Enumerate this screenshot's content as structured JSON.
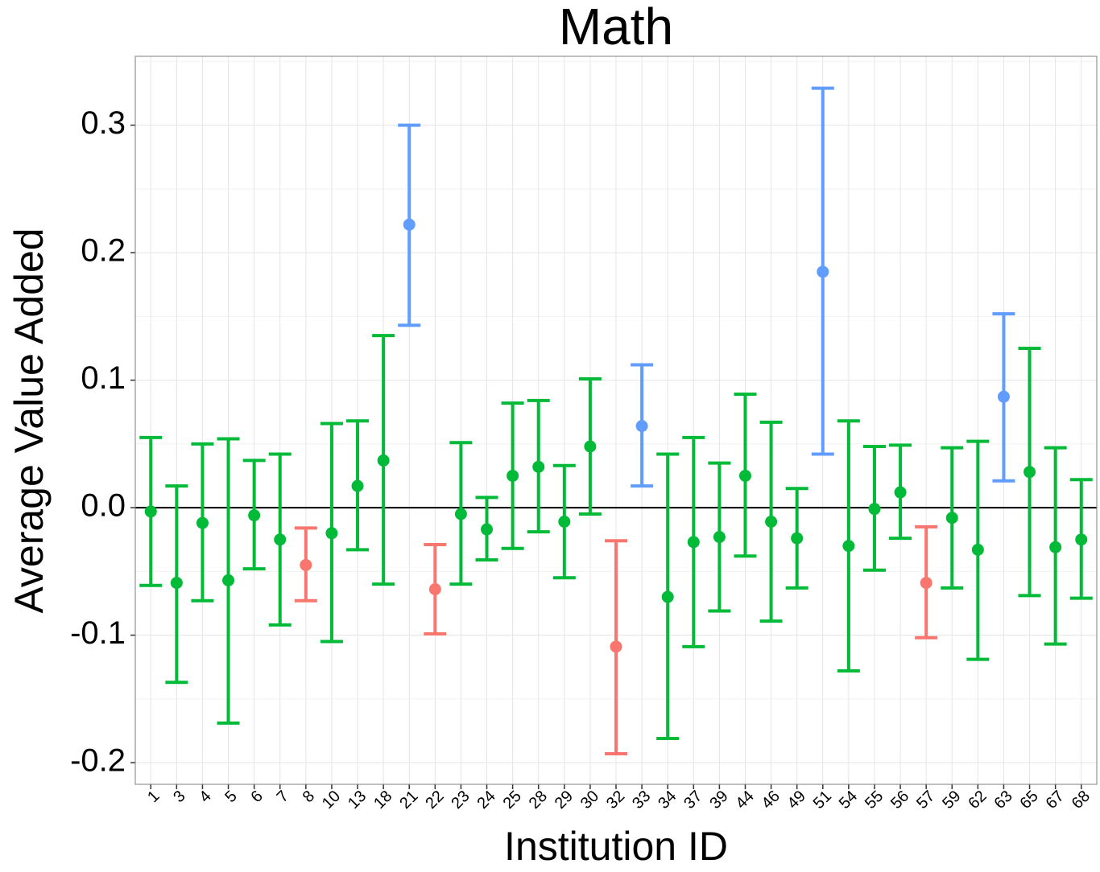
{
  "chart_data": {
    "type": "errorbar",
    "title": "Math",
    "x_label": "Institution ID",
    "y_label": "Average Value Added",
    "categories": [
      "1",
      "3",
      "4",
      "5",
      "6",
      "7",
      "8",
      "10",
      "13",
      "18",
      "21",
      "22",
      "23",
      "24",
      "25",
      "28",
      "29",
      "30",
      "32",
      "33",
      "34",
      "37",
      "39",
      "44",
      "46",
      "49",
      "51",
      "54",
      "55",
      "56",
      "57",
      "59",
      "62",
      "63",
      "65",
      "67",
      "68"
    ],
    "values": [
      -0.003,
      -0.059,
      -0.012,
      -0.057,
      -0.006,
      -0.025,
      -0.045,
      -0.02,
      0.017,
      0.037,
      0.222,
      -0.064,
      -0.005,
      -0.017,
      0.025,
      0.032,
      -0.011,
      0.048,
      -0.109,
      0.064,
      -0.07,
      -0.027,
      -0.023,
      0.025,
      -0.011,
      -0.024,
      0.185,
      -0.03,
      -0.001,
      0.012,
      -0.059,
      -0.008,
      -0.033,
      0.087,
      0.028,
      -0.031,
      -0.025
    ],
    "lower": [
      -0.061,
      -0.137,
      -0.073,
      -0.169,
      -0.048,
      -0.092,
      -0.073,
      -0.105,
      -0.033,
      -0.06,
      0.143,
      -0.099,
      -0.06,
      -0.041,
      -0.032,
      -0.019,
      -0.055,
      -0.005,
      -0.193,
      0.017,
      -0.181,
      -0.109,
      -0.081,
      -0.038,
      -0.089,
      -0.063,
      0.042,
      -0.128,
      -0.049,
      -0.024,
      -0.102,
      -0.063,
      -0.119,
      0.021,
      -0.069,
      -0.107,
      -0.071
    ],
    "upper": [
      0.055,
      0.017,
      0.05,
      0.054,
      0.037,
      0.042,
      -0.016,
      0.066,
      0.068,
      0.135,
      0.3,
      -0.029,
      0.051,
      0.008,
      0.082,
      0.084,
      0.033,
      0.101,
      -0.026,
      0.112,
      0.042,
      0.055,
      0.035,
      0.089,
      0.067,
      0.015,
      0.329,
      0.068,
      0.048,
      0.049,
      -0.015,
      0.047,
      0.052,
      0.152,
      0.125,
      0.047,
      0.022
    ],
    "colors": [
      "#00BA38",
      "#00BA38",
      "#00BA38",
      "#00BA38",
      "#00BA38",
      "#00BA38",
      "#F8766D",
      "#00BA38",
      "#00BA38",
      "#00BA38",
      "#619CFF",
      "#F8766D",
      "#00BA38",
      "#00BA38",
      "#00BA38",
      "#00BA38",
      "#00BA38",
      "#00BA38",
      "#F8766D",
      "#619CFF",
      "#00BA38",
      "#00BA38",
      "#00BA38",
      "#00BA38",
      "#00BA38",
      "#00BA38",
      "#619CFF",
      "#00BA38",
      "#00BA38",
      "#00BA38",
      "#F8766D",
      "#00BA38",
      "#00BA38",
      "#619CFF",
      "#00BA38",
      "#00BA38",
      "#00BA38"
    ],
    "ylim": [
      -0.217,
      0.354
    ],
    "yticks": [
      -0.2,
      -0.1,
      {
        "value": 0,
        "label": "0.0"
      },
      0.1,
      0.2,
      0.3
    ],
    "minor_yticks": [
      -0.15,
      -0.05,
      0.05,
      0.15,
      0.25,
      0.35
    ],
    "hline": 0,
    "grid": true
  }
}
